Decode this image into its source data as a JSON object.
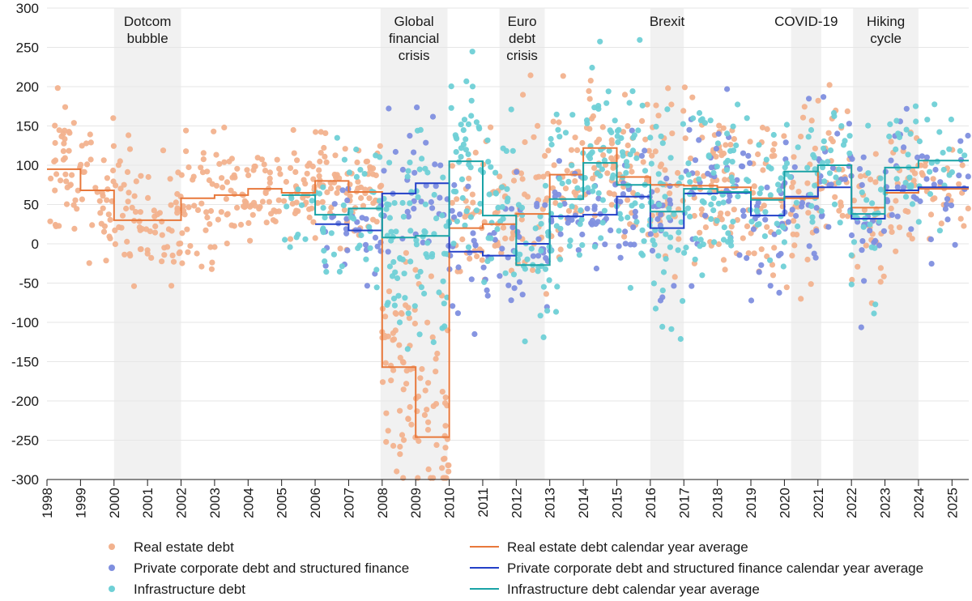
{
  "chart_data": {
    "type": "scatter",
    "title": "",
    "xlabel": "",
    "ylabel": "",
    "xlim": [
      1998,
      2025.5
    ],
    "ylim": [
      -300,
      300
    ],
    "y_ticks": [
      300,
      250,
      200,
      150,
      100,
      50,
      0,
      -50,
      -100,
      -150,
      -200,
      -250,
      -300
    ],
    "x_ticks": [
      "1998",
      "1999",
      "2000",
      "2001",
      "2002",
      "2003",
      "2004",
      "2005",
      "2006",
      "2007",
      "2008",
      "2009",
      "2010",
      "2011",
      "2012",
      "2013",
      "2014",
      "2015",
      "2016",
      "2017",
      "2018",
      "2019",
      "2020",
      "2021",
      "2022",
      "2023",
      "2024",
      "2025"
    ],
    "shaded_periods": [
      {
        "label": [
          "Dotcom",
          "bubble"
        ],
        "start": 2000.0,
        "end": 2002.0
      },
      {
        "label": [
          "Global",
          "financial",
          "crisis"
        ],
        "start": 2007.95,
        "end": 2009.95
      },
      {
        "label": [
          "Euro",
          "debt",
          "crisis"
        ],
        "start": 2011.5,
        "end": 2012.85
      },
      {
        "label": [
          "Brexit"
        ],
        "start": 2016.0,
        "end": 2017.0
      },
      {
        "label": [
          "COVID-19"
        ],
        "start": 2020.2,
        "end": 2021.1
      },
      {
        "label": [
          "Hiking",
          "cycle"
        ],
        "start": 2022.05,
        "end": 2024.0
      }
    ],
    "series_colors": {
      "real_estate": "#f2b28e",
      "private_corporate": "#7f8fdf",
      "infrastructure": "#6fd0d6",
      "real_estate_avg": "#e8783b",
      "private_corporate_avg": "#2340c8",
      "infrastructure_avg": "#1aa3a6"
    },
    "scatter_clusters": [
      {
        "series": "real_estate",
        "x0": 1998.0,
        "x1": 1999.0,
        "mean": 95,
        "sd": 45,
        "n": 40
      },
      {
        "series": "real_estate",
        "x0": 1999.0,
        "x1": 2000.0,
        "mean": 68,
        "sd": 40,
        "n": 36
      },
      {
        "series": "real_estate",
        "x0": 2000.0,
        "x1": 2001.0,
        "mean": 40,
        "sd": 45,
        "n": 36
      },
      {
        "series": "real_estate",
        "x0": 2001.0,
        "x1": 2002.0,
        "mean": 20,
        "sd": 42,
        "n": 36
      },
      {
        "series": "real_estate",
        "x0": 2002.0,
        "x1": 2003.0,
        "mean": 60,
        "sd": 40,
        "n": 36
      },
      {
        "series": "real_estate",
        "x0": 2003.0,
        "x1": 2004.0,
        "mean": 62,
        "sd": 40,
        "n": 36
      },
      {
        "series": "real_estate",
        "x0": 2004.0,
        "x1": 2005.0,
        "mean": 72,
        "sd": 30,
        "n": 36
      },
      {
        "series": "real_estate",
        "x0": 2005.0,
        "x1": 2006.0,
        "mean": 65,
        "sd": 30,
        "n": 36
      },
      {
        "series": "real_estate",
        "x0": 2006.0,
        "x1": 2007.0,
        "mean": 82,
        "sd": 35,
        "n": 40
      },
      {
        "series": "real_estate",
        "x0": 2007.0,
        "x1": 2008.0,
        "mean": 66,
        "sd": 32,
        "n": 40
      },
      {
        "series": "real_estate",
        "x0": 2008.0,
        "x1": 2009.0,
        "mean": -150,
        "sd": 70,
        "n": 55
      },
      {
        "series": "real_estate",
        "x0": 2009.0,
        "x1": 2010.0,
        "mean": -220,
        "sd": 80,
        "n": 45
      },
      {
        "series": "real_estate",
        "x0": 2010.0,
        "x1": 2011.0,
        "mean": 22,
        "sd": 40,
        "n": 30
      },
      {
        "series": "real_estate",
        "x0": 2011.0,
        "x1": 2012.0,
        "mean": 25,
        "sd": 50,
        "n": 30
      },
      {
        "series": "real_estate",
        "x0": 2012.0,
        "x1": 2013.0,
        "mean": 40,
        "sd": 70,
        "n": 34
      },
      {
        "series": "real_estate",
        "x0": 2013.0,
        "x1": 2014.0,
        "mean": 88,
        "sd": 50,
        "n": 34
      },
      {
        "series": "real_estate",
        "x0": 2014.0,
        "x1": 2015.0,
        "mean": 120,
        "sd": 45,
        "n": 34
      },
      {
        "series": "real_estate",
        "x0": 2015.0,
        "x1": 2016.0,
        "mean": 90,
        "sd": 45,
        "n": 34
      },
      {
        "series": "real_estate",
        "x0": 2016.0,
        "x1": 2017.0,
        "mean": 75,
        "sd": 50,
        "n": 34
      },
      {
        "series": "real_estate",
        "x0": 2017.0,
        "x1": 2018.0,
        "mean": 75,
        "sd": 50,
        "n": 34
      },
      {
        "series": "real_estate",
        "x0": 2018.0,
        "x1": 2019.0,
        "mean": 72,
        "sd": 55,
        "n": 34
      },
      {
        "series": "real_estate",
        "x0": 2019.0,
        "x1": 2020.0,
        "mean": 58,
        "sd": 50,
        "n": 30
      },
      {
        "series": "real_estate",
        "x0": 2020.0,
        "x1": 2021.0,
        "mean": 60,
        "sd": 55,
        "n": 30
      },
      {
        "series": "real_estate",
        "x0": 2021.0,
        "x1": 2022.0,
        "mean": 100,
        "sd": 45,
        "n": 30
      },
      {
        "series": "real_estate",
        "x0": 2022.0,
        "x1": 2023.0,
        "mean": 45,
        "sd": 60,
        "n": 28
      },
      {
        "series": "real_estate",
        "x0": 2023.0,
        "x1": 2024.0,
        "mean": 65,
        "sd": 45,
        "n": 26
      },
      {
        "series": "real_estate",
        "x0": 2024.0,
        "x1": 2025.5,
        "mean": 70,
        "sd": 40,
        "n": 26
      },
      {
        "series": "private_corporate",
        "x0": 2006.0,
        "x1": 2007.0,
        "mean": 25,
        "sd": 30,
        "n": 16
      },
      {
        "series": "private_corporate",
        "x0": 2007.0,
        "x1": 2008.0,
        "mean": 18,
        "sd": 35,
        "n": 16
      },
      {
        "series": "private_corporate",
        "x0": 2008.0,
        "x1": 2009.0,
        "mean": 65,
        "sd": 55,
        "n": 18
      },
      {
        "series": "private_corporate",
        "x0": 2009.0,
        "x1": 2010.0,
        "mean": 78,
        "sd": 60,
        "n": 18
      },
      {
        "series": "private_corporate",
        "x0": 2010.0,
        "x1": 2011.0,
        "mean": -10,
        "sd": 50,
        "n": 18
      },
      {
        "series": "private_corporate",
        "x0": 2011.0,
        "x1": 2012.0,
        "mean": -15,
        "sd": 40,
        "n": 18
      },
      {
        "series": "private_corporate",
        "x0": 2012.0,
        "x1": 2013.0,
        "mean": 0,
        "sd": 40,
        "n": 18
      },
      {
        "series": "private_corporate",
        "x0": 2013.0,
        "x1": 2014.0,
        "mean": 35,
        "sd": 40,
        "n": 20
      },
      {
        "series": "private_corporate",
        "x0": 2014.0,
        "x1": 2015.0,
        "mean": 40,
        "sd": 40,
        "n": 20
      },
      {
        "series": "private_corporate",
        "x0": 2015.0,
        "x1": 2016.0,
        "mean": 60,
        "sd": 40,
        "n": 20
      },
      {
        "series": "private_corporate",
        "x0": 2016.0,
        "x1": 2017.0,
        "mean": 20,
        "sd": 45,
        "n": 20
      },
      {
        "series": "private_corporate",
        "x0": 2017.0,
        "x1": 2018.0,
        "mean": 65,
        "sd": 45,
        "n": 20
      },
      {
        "series": "private_corporate",
        "x0": 2018.0,
        "x1": 2019.0,
        "mean": 65,
        "sd": 45,
        "n": 20
      },
      {
        "series": "private_corporate",
        "x0": 2019.0,
        "x1": 2020.0,
        "mean": 35,
        "sd": 45,
        "n": 20
      },
      {
        "series": "private_corporate",
        "x0": 2020.0,
        "x1": 2021.0,
        "mean": 60,
        "sd": 45,
        "n": 20
      },
      {
        "series": "private_corporate",
        "x0": 2021.0,
        "x1": 2022.0,
        "mean": 72,
        "sd": 45,
        "n": 20
      },
      {
        "series": "private_corporate",
        "x0": 2022.0,
        "x1": 2023.0,
        "mean": 32,
        "sd": 55,
        "n": 22
      },
      {
        "series": "private_corporate",
        "x0": 2023.0,
        "x1": 2024.0,
        "mean": 68,
        "sd": 50,
        "n": 20
      },
      {
        "series": "private_corporate",
        "x0": 2024.0,
        "x1": 2025.5,
        "mean": 72,
        "sd": 40,
        "n": 22
      },
      {
        "series": "infrastructure",
        "x0": 2005.0,
        "x1": 2006.0,
        "mean": 62,
        "sd": 30,
        "n": 10
      },
      {
        "series": "infrastructure",
        "x0": 2006.0,
        "x1": 2007.0,
        "mean": 38,
        "sd": 40,
        "n": 18
      },
      {
        "series": "infrastructure",
        "x0": 2007.0,
        "x1": 2008.0,
        "mean": 45,
        "sd": 45,
        "n": 24
      },
      {
        "series": "infrastructure",
        "x0": 2008.0,
        "x1": 2009.0,
        "mean": 8,
        "sd": 60,
        "n": 40
      },
      {
        "series": "infrastructure",
        "x0": 2009.0,
        "x1": 2010.0,
        "mean": 10,
        "sd": 70,
        "n": 40
      },
      {
        "series": "infrastructure",
        "x0": 2010.0,
        "x1": 2011.0,
        "mean": 105,
        "sd": 70,
        "n": 40
      },
      {
        "series": "infrastructure",
        "x0": 2011.0,
        "x1": 2012.0,
        "mean": 35,
        "sd": 55,
        "n": 30
      },
      {
        "series": "infrastructure",
        "x0": 2012.0,
        "x1": 2013.0,
        "mean": -25,
        "sd": 55,
        "n": 30
      },
      {
        "series": "infrastructure",
        "x0": 2013.0,
        "x1": 2014.0,
        "mean": 57,
        "sd": 55,
        "n": 34
      },
      {
        "series": "infrastructure",
        "x0": 2014.0,
        "x1": 2015.0,
        "mean": 102,
        "sd": 55,
        "n": 38
      },
      {
        "series": "infrastructure",
        "x0": 2015.0,
        "x1": 2016.0,
        "mean": 75,
        "sd": 65,
        "n": 40
      },
      {
        "series": "infrastructure",
        "x0": 2016.0,
        "x1": 2017.0,
        "mean": 40,
        "sd": 65,
        "n": 40
      },
      {
        "series": "infrastructure",
        "x0": 2017.0,
        "x1": 2018.0,
        "mean": 72,
        "sd": 55,
        "n": 36
      },
      {
        "series": "infrastructure",
        "x0": 2018.0,
        "x1": 2019.0,
        "mean": 68,
        "sd": 55,
        "n": 32
      },
      {
        "series": "infrastructure",
        "x0": 2019.0,
        "x1": 2020.0,
        "mean": 55,
        "sd": 50,
        "n": 26
      },
      {
        "series": "infrastructure",
        "x0": 2020.0,
        "x1": 2021.0,
        "mean": 93,
        "sd": 45,
        "n": 22
      },
      {
        "series": "infrastructure",
        "x0": 2021.0,
        "x1": 2022.0,
        "mean": 100,
        "sd": 40,
        "n": 22
      },
      {
        "series": "infrastructure",
        "x0": 2022.0,
        "x1": 2023.0,
        "mean": 38,
        "sd": 50,
        "n": 22
      },
      {
        "series": "infrastructure",
        "x0": 2023.0,
        "x1": 2024.0,
        "mean": 97,
        "sd": 45,
        "n": 22
      },
      {
        "series": "infrastructure",
        "x0": 2024.0,
        "x1": 2025.5,
        "mean": 105,
        "sd": 40,
        "n": 20
      }
    ],
    "averages": [
      {
        "name": "Real estate debt calendar year average",
        "key": "real_estate_avg",
        "x": [
          1998,
          1999,
          2000,
          2001,
          2002,
          2003,
          2004,
          2005,
          2006,
          2007,
          2008,
          2009,
          2010,
          2011,
          2012,
          2013,
          2014,
          2015,
          2016,
          2017,
          2018,
          2019,
          2020,
          2021,
          2022,
          2023,
          2024,
          2025
        ],
        "values": [
          95,
          68,
          30,
          30,
          58,
          62,
          70,
          65,
          80,
          66,
          -157,
          -246,
          20,
          25,
          38,
          88,
          122,
          85,
          75,
          74,
          72,
          58,
          58,
          100,
          46,
          65,
          70,
          70
        ]
      },
      {
        "name": "Private corporate debt and structured finance calendar year average",
        "key": "private_corporate_avg",
        "x": [
          2006,
          2007,
          2008,
          2009,
          2010,
          2011,
          2012,
          2013,
          2014,
          2015,
          2016,
          2017,
          2018,
          2019,
          2020,
          2021,
          2022,
          2023,
          2024,
          2025
        ],
        "values": [
          25,
          17,
          64,
          77,
          -10,
          -15,
          0,
          35,
          37,
          60,
          20,
          64,
          65,
          36,
          60,
          72,
          32,
          68,
          72,
          72
        ]
      },
      {
        "name": "Infrastructure debt calendar year average",
        "key": "infrastructure_avg",
        "x": [
          2005,
          2006,
          2007,
          2008,
          2009,
          2010,
          2011,
          2012,
          2013,
          2014,
          2015,
          2016,
          2017,
          2018,
          2019,
          2020,
          2021,
          2022,
          2023,
          2024,
          2025
        ],
        "values": [
          62,
          37,
          45,
          8,
          10,
          105,
          36,
          -27,
          57,
          103,
          75,
          41,
          70,
          66,
          56,
          92,
          100,
          38,
          97,
          106,
          106
        ]
      }
    ],
    "legend": [
      {
        "label": "Real estate debt",
        "type": "dot",
        "key": "real_estate"
      },
      {
        "label": "Private corporate debt and structured finance",
        "type": "dot",
        "key": "private_corporate"
      },
      {
        "label": "Infrastructure debt",
        "type": "dot",
        "key": "infrastructure"
      },
      {
        "label": "Real estate debt calendar year average",
        "type": "line",
        "key": "real_estate_avg"
      },
      {
        "label": "Private corporate debt and structured finance calendar year average",
        "type": "line",
        "key": "private_corporate_avg"
      },
      {
        "label": "Infrastructure debt calendar year average",
        "type": "line",
        "key": "infrastructure_avg"
      }
    ]
  }
}
